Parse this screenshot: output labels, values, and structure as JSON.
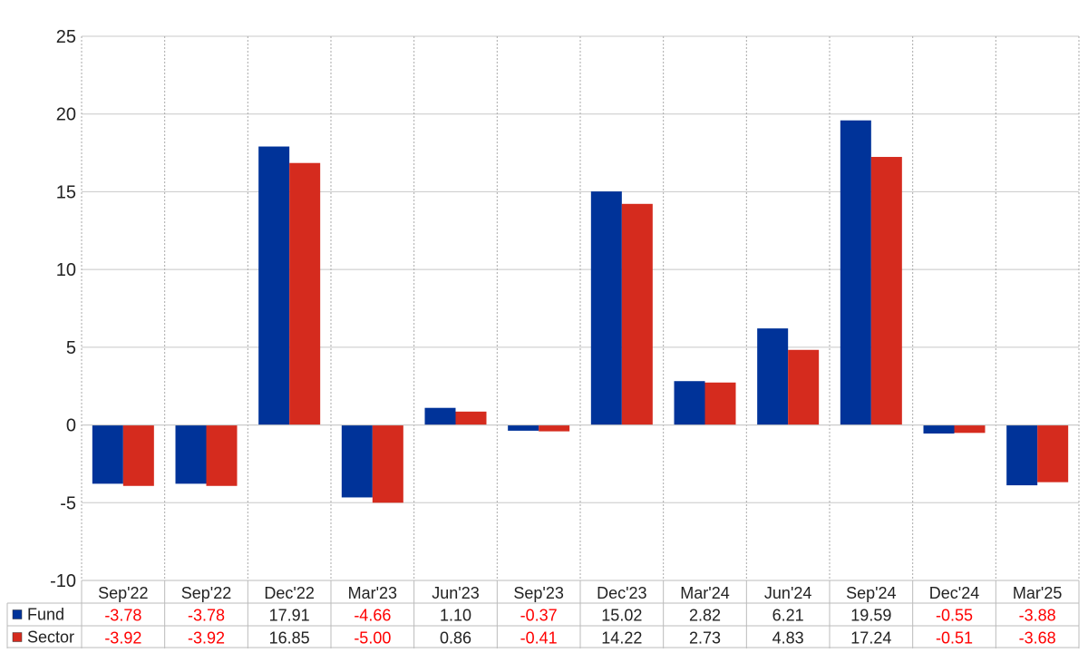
{
  "chart_data": {
    "type": "bar",
    "categories": [
      "Sep'22",
      "Sep'22",
      "Dec'22",
      "Mar'23",
      "Jun'23",
      "Sep'23",
      "Dec'23",
      "Mar'24",
      "Jun'24",
      "Sep'24",
      "Dec'24",
      "Mar'25"
    ],
    "series": [
      {
        "name": "Fund",
        "color": "#003399",
        "values": [
          -3.78,
          -3.78,
          17.91,
          -4.66,
          1.1,
          -0.37,
          15.02,
          2.82,
          6.21,
          19.59,
          -0.55,
          -3.88
        ],
        "labels": [
          "-3.78",
          "-3.78",
          "17.91",
          "-4.66",
          "1.10",
          "-0.37",
          "15.02",
          "2.82",
          "6.21",
          "19.59",
          "-0.55",
          "-3.88"
        ]
      },
      {
        "name": "Sector",
        "color": "#d52b1e",
        "values": [
          -3.92,
          -3.92,
          16.85,
          -5.0,
          0.86,
          -0.41,
          14.22,
          2.73,
          4.83,
          17.24,
          -0.51,
          -3.68
        ],
        "labels": [
          "-3.92",
          "-3.92",
          "16.85",
          "-5.00",
          "0.86",
          "-0.41",
          "14.22",
          "2.73",
          "4.83",
          "17.24",
          "-0.51",
          "-3.68"
        ]
      }
    ],
    "yticks": [
      "25",
      "20",
      "15",
      "10",
      "5",
      "0",
      "-5",
      "-10"
    ],
    "ylim": [
      -10,
      25
    ],
    "grid": true,
    "legend": "bottom-left table",
    "negative_value_color": "#ff0000",
    "positive_value_color": "#222222"
  }
}
